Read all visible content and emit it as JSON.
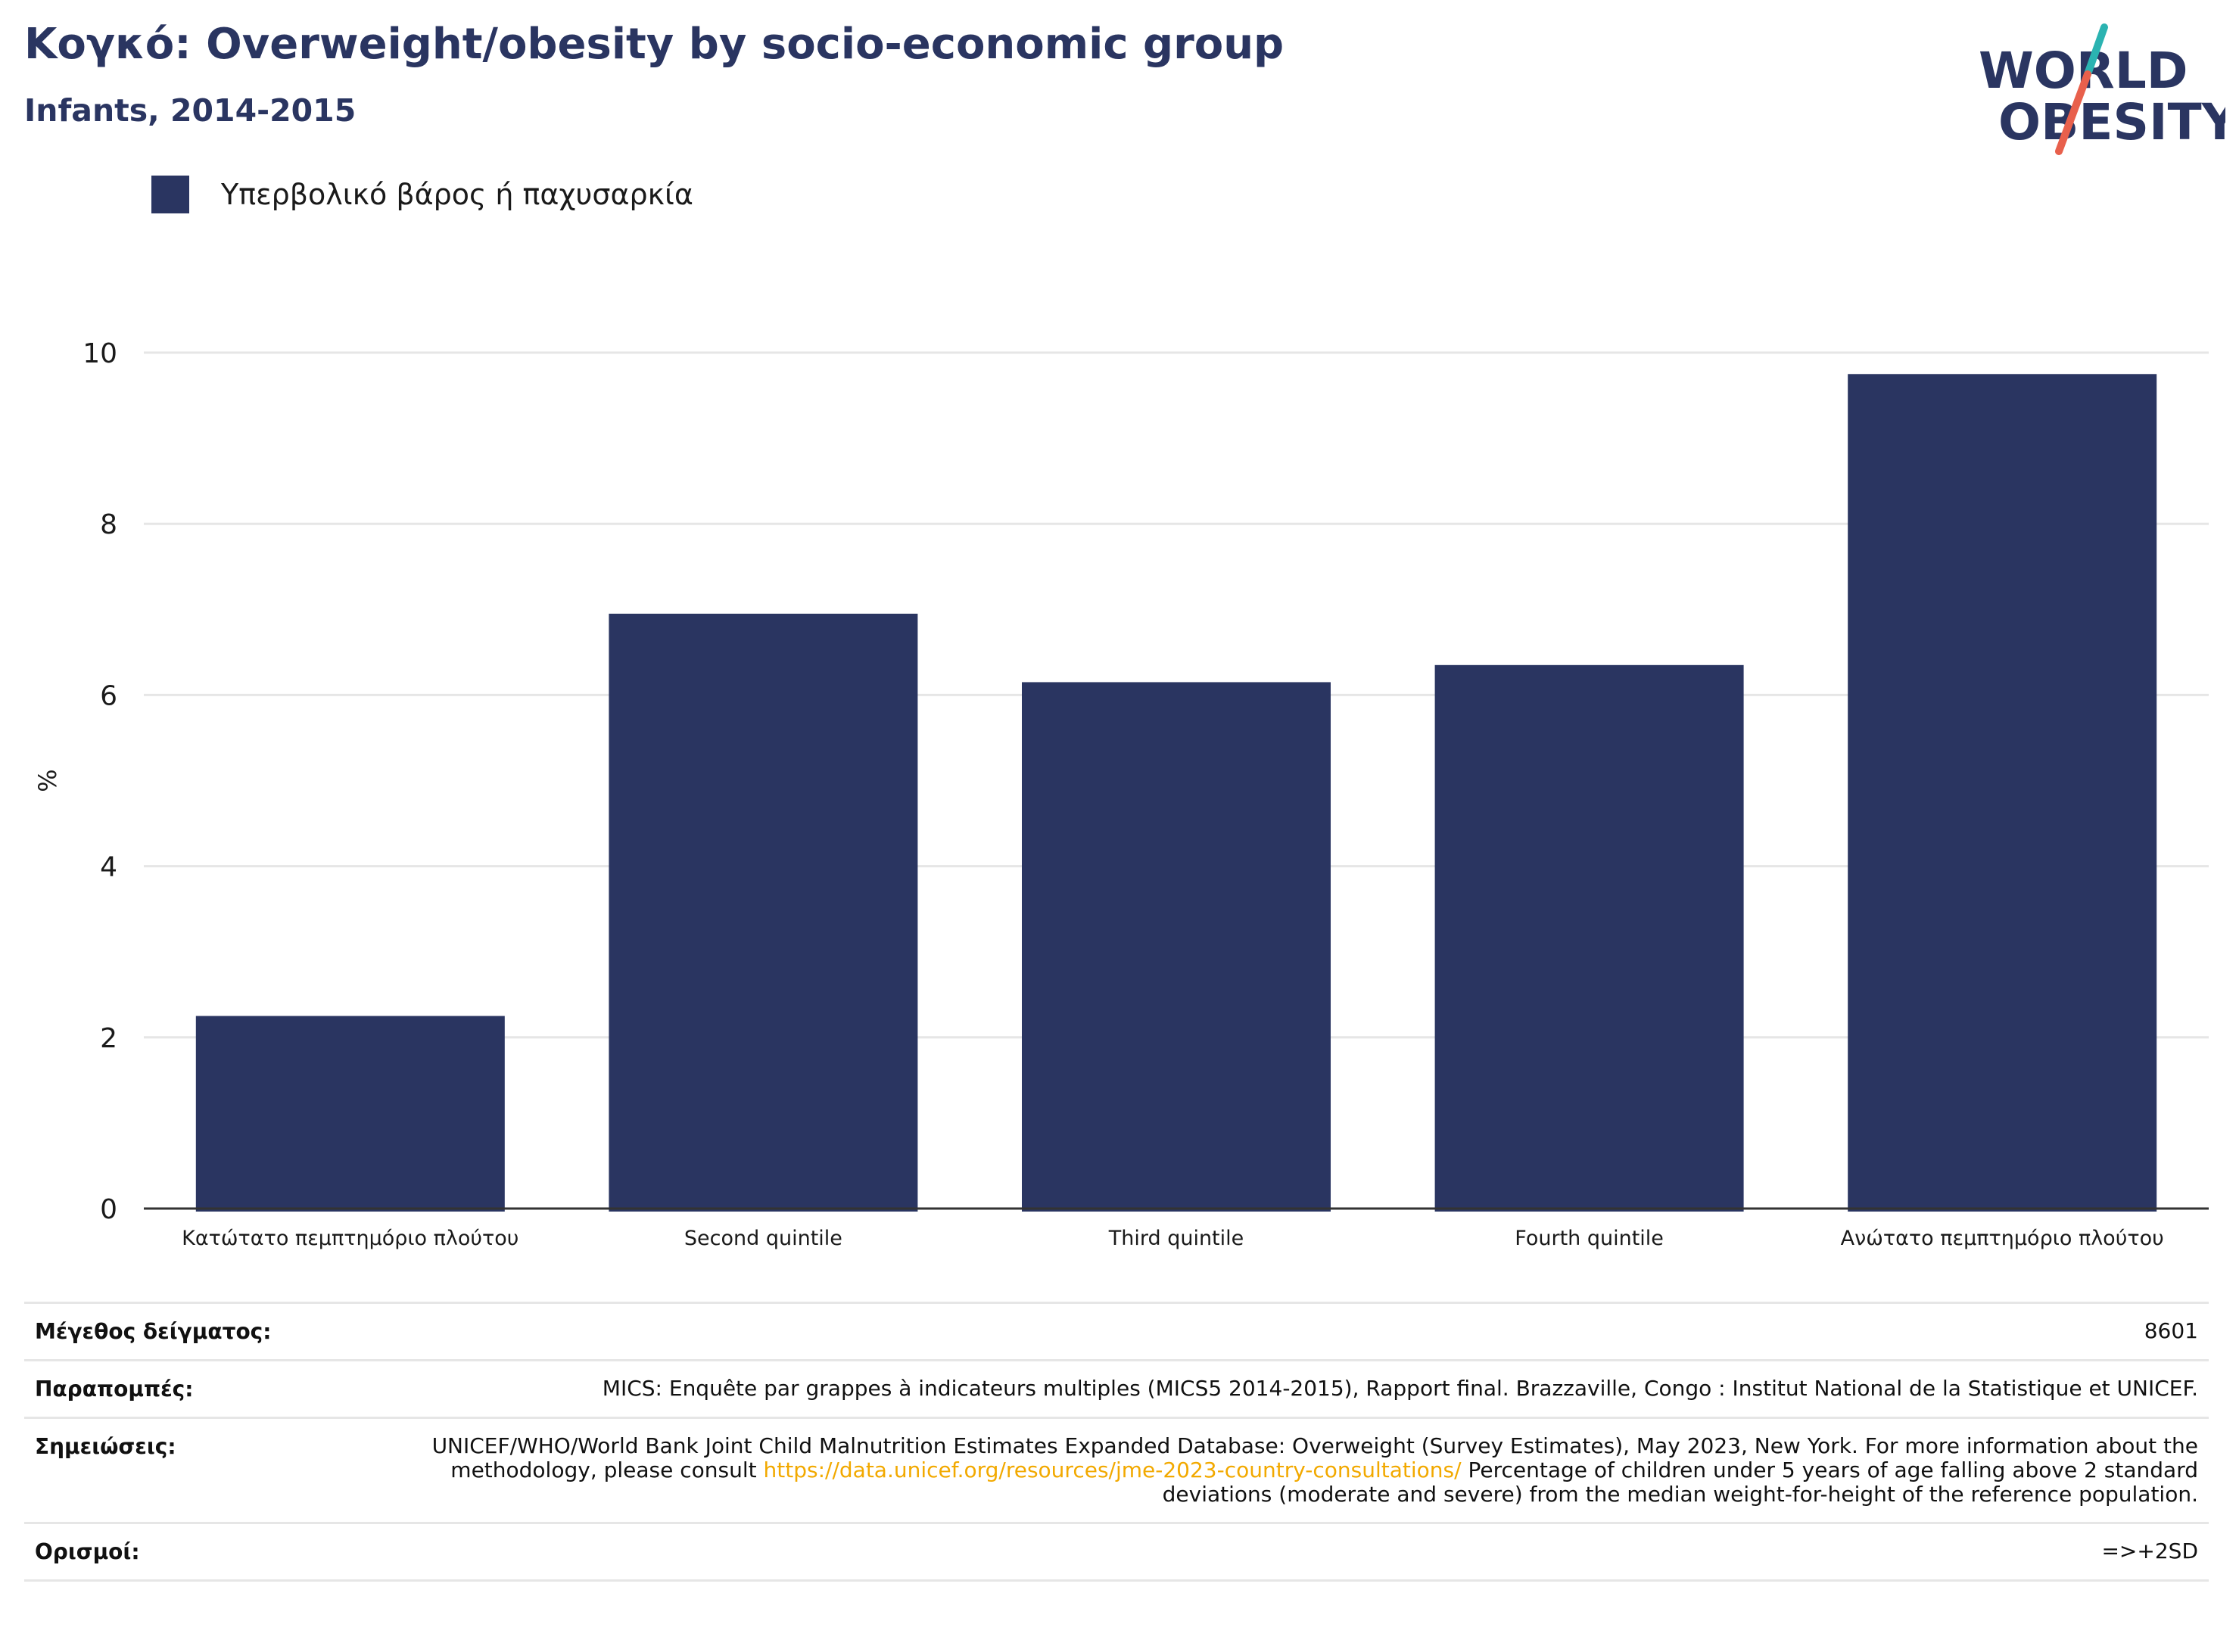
{
  "header": {
    "title": "Κογκό: Overweight/obesity by socio-economic group",
    "subtitle": "Infants, 2014-2015"
  },
  "logo": {
    "line1": "WORLD",
    "line2": "OBESITY",
    "text_color": "#2a3561",
    "slash_colors": [
      "#2bb3b1",
      "#e8604c"
    ]
  },
  "legend": {
    "items": [
      {
        "label": "Υπερβολικό βάρος ή παχυσαρκία",
        "color": "#2a3561"
      }
    ]
  },
  "chart_data": {
    "type": "bar",
    "categories": [
      "Κατώτατο πεμπτημόριο πλούτου",
      "Second quintile",
      "Third quintile",
      "Fourth quintile",
      "Ανώτατο πεμπτημόριο πλούτου"
    ],
    "series": [
      {
        "name": "Υπερβολικό βάρος ή παχυσαρκία",
        "values": [
          2.25,
          6.95,
          6.15,
          6.35,
          9.75
        ],
        "color": "#2a3561"
      }
    ],
    "ylabel": "%",
    "ylim": [
      0,
      10
    ],
    "yticks": [
      0,
      2,
      4,
      6,
      8,
      10
    ],
    "grid": true
  },
  "meta": {
    "sample_size": {
      "label": "Μέγεθος δείγματος:",
      "value": "8601"
    },
    "references": {
      "label": "Παραπομπές:",
      "value": "MICS: Enquête par grappes à indicateurs multiples (MICS5 2014-2015), Rapport final. Brazzaville, Congo : Institut National de la Statistique et UNICEF."
    },
    "notes": {
      "label": "Σημειώσεις:",
      "text_before": "UNICEF/WHO/World Bank Joint Child Malnutrition Estimates Expanded Database: Overweight (Survey Estimates), May 2023, New York. For more information about the methodology, please consult ",
      "link": "https://data.unicef.org/resources/jme-2023-country-consultations/",
      "text_after": " Percentage of children under 5 years of age falling above 2 standard deviations (moderate and severe) from the median weight-for-height of the reference population."
    },
    "definitions": {
      "label": "Ορισμοί:",
      "value": "=>+2SD"
    }
  }
}
